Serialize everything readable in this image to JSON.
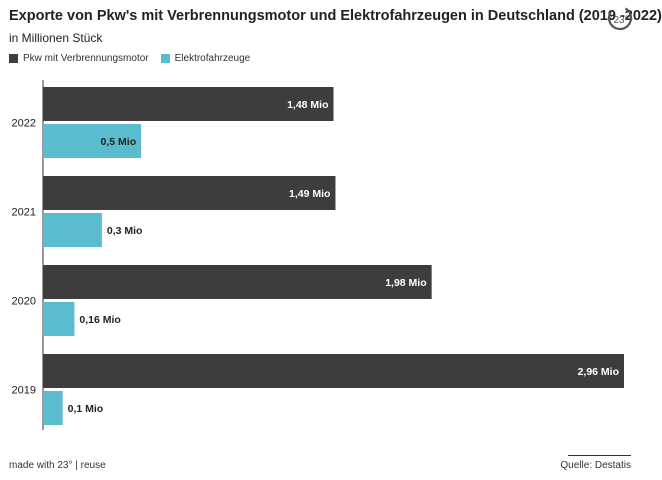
{
  "header": {
    "title": "Exporte von Pkw's mit Verbrennungsmotor und Elektrofahrzeugen in Deutschland (2019 -2022)",
    "subtitle": "in Millionen Stück"
  },
  "footer": {
    "made_with": "made with 23° | reuse",
    "source": "Quelle: Destatis"
  },
  "logo": {
    "icon": "23-degrees-logo-icon",
    "text": "23°"
  },
  "colors": {
    "verbrenner": "#3d3d3d",
    "elektro": "#5bbccf"
  },
  "chart_data": {
    "type": "bar",
    "orientation": "horizontal",
    "categories": [
      "2022",
      "2021",
      "2020",
      "2019"
    ],
    "series": [
      {
        "name": "Pkw mit Verbrennungsmotor",
        "values": [
          1.48,
          1.49,
          1.98,
          2.96
        ],
        "labels": [
          "1,48 Mio",
          "1,49 Mio",
          "1,98 Mio",
          "2,96 Mio"
        ]
      },
      {
        "name": "Elektrofahrzeuge",
        "values": [
          0.5,
          0.3,
          0.16,
          0.1
        ],
        "labels": [
          "0,5 Mio",
          "0,3 Mio",
          "0,16 Mio",
          "0,1 Mio"
        ]
      }
    ],
    "title": "Exporte von Pkw's mit Verbrennungsmotor und Elektrofahrzeugen in Deutschland (2019 -2022)",
    "subtitle": "in Millionen Stück",
    "xlim": [
      0,
      2.96
    ],
    "grid": false,
    "legend": "top-left"
  }
}
